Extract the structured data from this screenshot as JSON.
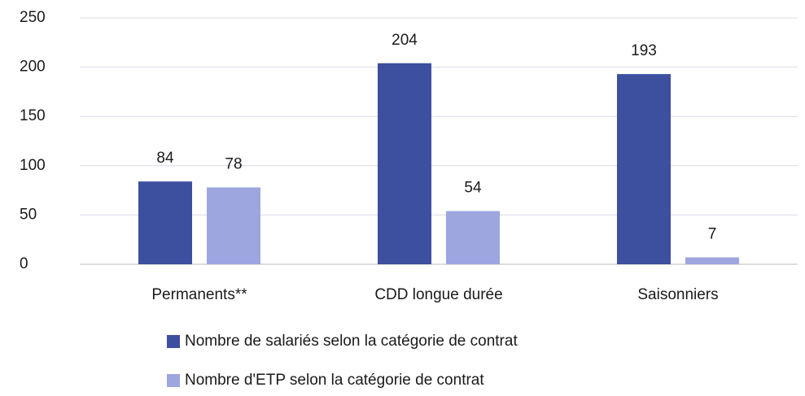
{
  "chart_data": {
    "type": "bar",
    "categories": [
      "Permanents**",
      "CDD longue durée",
      "Saisonniers"
    ],
    "series": [
      {
        "name": "Nombre de salariés selon la catégorie de contrat",
        "color": "#3d4f9f",
        "values": [
          84,
          204,
          193
        ]
      },
      {
        "name": "Nombre d'ETP selon la catégorie de contrat",
        "color": "#9ea6e0",
        "values": [
          78,
          54,
          7
        ]
      }
    ],
    "ylim": [
      0,
      250
    ],
    "yticks": [
      0,
      50,
      100,
      150,
      200,
      250
    ],
    "grid": true,
    "legend": "bottom"
  }
}
